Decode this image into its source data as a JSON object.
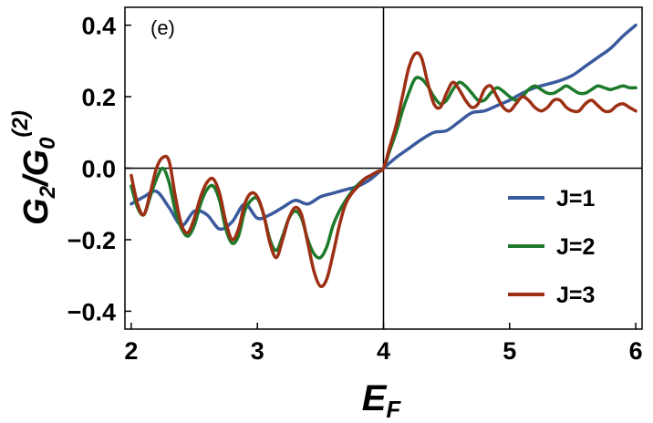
{
  "chart_data": {
    "type": "line",
    "panel_label": "(e)",
    "xlabel": {
      "main": "E",
      "sub": "F"
    },
    "ylabel": {
      "main": "G",
      "sub1": "2",
      "mid": "/G",
      "sub2": "0",
      "sup": "(2)"
    },
    "xlim": [
      1.95,
      6.05
    ],
    "ylim": [
      -0.45,
      0.45
    ],
    "xticks": [
      2,
      3,
      4,
      5,
      6
    ],
    "xtick_labels": [
      "2",
      "3",
      "4",
      "5",
      "6"
    ],
    "yticks": [
      -0.4,
      -0.2,
      0.0,
      0.2,
      0.4
    ],
    "ytick_labels": [
      "−0.4",
      "−0.2",
      "0.0",
      "0.2",
      "0.4"
    ],
    "reference_lines": {
      "x": 4,
      "y": 0
    },
    "legend_position": "right",
    "grid": false,
    "series": [
      {
        "name": "J=1",
        "color": "#3a5a9e",
        "x": [
          2.0,
          2.1,
          2.2,
          2.3,
          2.4,
          2.5,
          2.6,
          2.7,
          2.8,
          2.9,
          3.0,
          3.1,
          3.2,
          3.3,
          3.4,
          3.5,
          3.6,
          3.7,
          3.8,
          3.9,
          4.0,
          4.1,
          4.2,
          4.3,
          4.4,
          4.5,
          4.6,
          4.7,
          4.8,
          4.9,
          5.0,
          5.1,
          5.2,
          5.3,
          5.4,
          5.5,
          5.6,
          5.7,
          5.8,
          5.9,
          6.0
        ],
        "values": [
          -0.1,
          -0.08,
          -0.065,
          -0.11,
          -0.16,
          -0.12,
          -0.13,
          -0.17,
          -0.15,
          -0.1,
          -0.14,
          -0.13,
          -0.11,
          -0.09,
          -0.1,
          -0.08,
          -0.07,
          -0.06,
          -0.05,
          -0.03,
          0.0,
          0.03,
          0.055,
          0.08,
          0.1,
          0.105,
          0.13,
          0.155,
          0.16,
          0.175,
          0.19,
          0.21,
          0.225,
          0.235,
          0.245,
          0.26,
          0.285,
          0.31,
          0.335,
          0.37,
          0.4
        ]
      },
      {
        "name": "J=2",
        "color": "#1d7a2a",
        "x": [
          2.0,
          2.05,
          2.1,
          2.15,
          2.2,
          2.25,
          2.3,
          2.35,
          2.4,
          2.45,
          2.5,
          2.55,
          2.6,
          2.65,
          2.7,
          2.75,
          2.8,
          2.85,
          2.9,
          2.95,
          3.0,
          3.05,
          3.1,
          3.15,
          3.2,
          3.25,
          3.3,
          3.35,
          3.4,
          3.45,
          3.5,
          3.55,
          3.6,
          3.65,
          3.7,
          3.75,
          3.8,
          3.85,
          3.9,
          3.95,
          4.0,
          4.05,
          4.1,
          4.15,
          4.2,
          4.25,
          4.3,
          4.35,
          4.4,
          4.45,
          4.5,
          4.55,
          4.6,
          4.65,
          4.7,
          4.75,
          4.8,
          4.85,
          4.9,
          4.95,
          5.0,
          5.05,
          5.1,
          5.15,
          5.2,
          5.25,
          5.3,
          5.35,
          5.4,
          5.45,
          5.5,
          5.55,
          5.6,
          5.65,
          5.7,
          5.75,
          5.8,
          5.85,
          5.9,
          5.95,
          6.0
        ],
        "values": [
          -0.05,
          -0.11,
          -0.13,
          -0.08,
          -0.03,
          0.0,
          -0.04,
          -0.12,
          -0.17,
          -0.19,
          -0.16,
          -0.1,
          -0.06,
          -0.05,
          -0.09,
          -0.17,
          -0.21,
          -0.19,
          -0.12,
          -0.09,
          -0.085,
          -0.13,
          -0.2,
          -0.23,
          -0.19,
          -0.14,
          -0.12,
          -0.14,
          -0.2,
          -0.24,
          -0.25,
          -0.22,
          -0.16,
          -0.12,
          -0.09,
          -0.065,
          -0.045,
          -0.03,
          -0.02,
          -0.01,
          0.0,
          0.05,
          0.1,
          0.16,
          0.21,
          0.25,
          0.25,
          0.23,
          0.2,
          0.18,
          0.19,
          0.22,
          0.24,
          0.23,
          0.21,
          0.19,
          0.19,
          0.21,
          0.225,
          0.215,
          0.2,
          0.19,
          0.2,
          0.22,
          0.23,
          0.22,
          0.21,
          0.21,
          0.22,
          0.23,
          0.22,
          0.21,
          0.21,
          0.22,
          0.23,
          0.225,
          0.22,
          0.225,
          0.23,
          0.225,
          0.225
        ]
      },
      {
        "name": "J=3",
        "color": "#9c2f14",
        "x": [
          2.0,
          2.05,
          2.1,
          2.15,
          2.2,
          2.25,
          2.3,
          2.35,
          2.4,
          2.45,
          2.5,
          2.55,
          2.6,
          2.65,
          2.7,
          2.75,
          2.8,
          2.85,
          2.9,
          2.95,
          3.0,
          3.05,
          3.1,
          3.15,
          3.2,
          3.25,
          3.3,
          3.35,
          3.4,
          3.45,
          3.5,
          3.55,
          3.6,
          3.65,
          3.7,
          3.75,
          3.8,
          3.85,
          3.9,
          3.95,
          4.0,
          4.05,
          4.1,
          4.15,
          4.2,
          4.25,
          4.3,
          4.35,
          4.4,
          4.45,
          4.5,
          4.55,
          4.6,
          4.65,
          4.7,
          4.75,
          4.8,
          4.85,
          4.9,
          4.95,
          5.0,
          5.05,
          5.1,
          5.15,
          5.2,
          5.25,
          5.3,
          5.35,
          5.4,
          5.45,
          5.5,
          5.55,
          5.6,
          5.65,
          5.7,
          5.75,
          5.8,
          5.85,
          5.9,
          5.95,
          6.0
        ],
        "values": [
          -0.02,
          -0.1,
          -0.13,
          -0.07,
          0.0,
          0.03,
          0.02,
          -0.08,
          -0.16,
          -0.18,
          -0.14,
          -0.08,
          -0.04,
          -0.03,
          -0.07,
          -0.15,
          -0.2,
          -0.17,
          -0.1,
          -0.07,
          -0.08,
          -0.13,
          -0.21,
          -0.25,
          -0.2,
          -0.14,
          -0.11,
          -0.13,
          -0.21,
          -0.29,
          -0.33,
          -0.31,
          -0.24,
          -0.16,
          -0.1,
          -0.07,
          -0.05,
          -0.03,
          -0.02,
          -0.01,
          0.0,
          0.06,
          0.12,
          0.2,
          0.28,
          0.32,
          0.31,
          0.24,
          0.18,
          0.17,
          0.21,
          0.24,
          0.22,
          0.19,
          0.17,
          0.18,
          0.22,
          0.23,
          0.2,
          0.17,
          0.16,
          0.18,
          0.2,
          0.19,
          0.17,
          0.16,
          0.17,
          0.19,
          0.19,
          0.17,
          0.16,
          0.16,
          0.18,
          0.19,
          0.175,
          0.16,
          0.16,
          0.175,
          0.18,
          0.17,
          0.16
        ]
      }
    ]
  }
}
